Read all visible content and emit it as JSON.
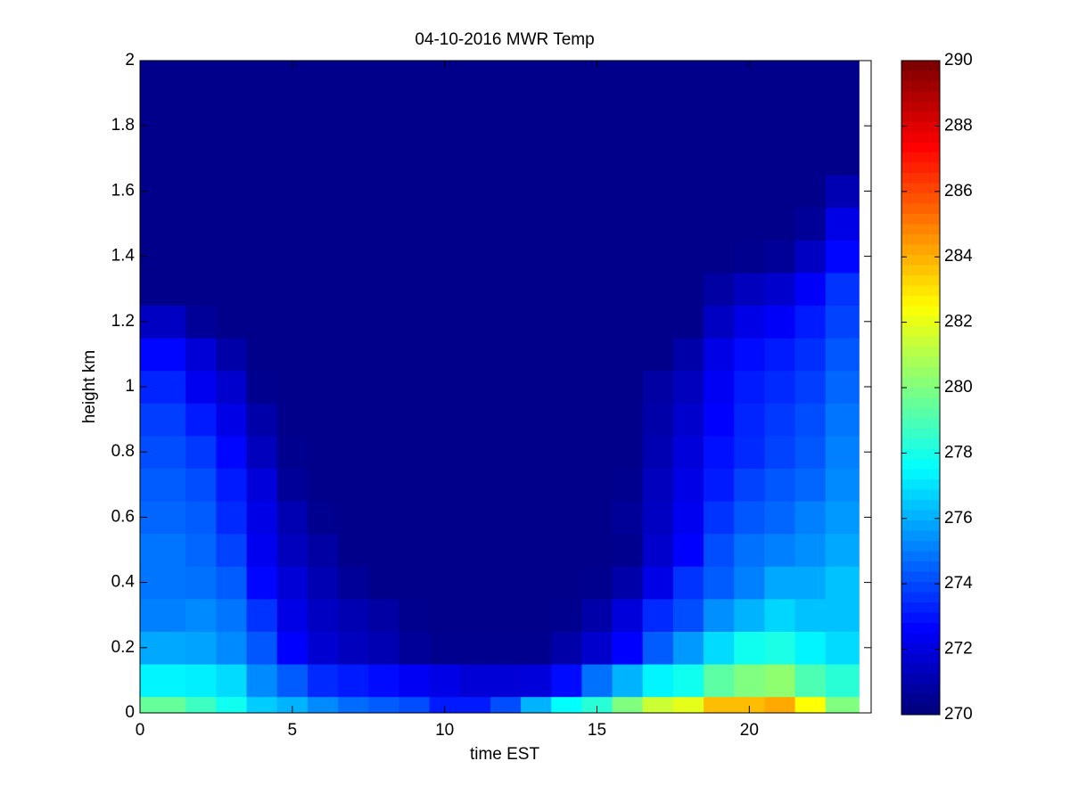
{
  "chart_data": {
    "type": "heatmap",
    "title": "04-10-2016 MWR Temp",
    "xlabel": "time EST",
    "ylabel": "height km",
    "colormap": "jet",
    "clim": [
      270,
      290
    ],
    "cticks": [
      270,
      272,
      274,
      276,
      278,
      280,
      282,
      284,
      286,
      288,
      290
    ],
    "xlim": [
      0,
      24
    ],
    "xticks": [
      0,
      5,
      10,
      15,
      20
    ],
    "ylim": [
      0,
      2
    ],
    "yticks": [
      0,
      0.2,
      0.4,
      0.6,
      0.8,
      1,
      1.2,
      1.4,
      1.6,
      1.8,
      2
    ],
    "x_edges": [
      0,
      1.5,
      2.5,
      3.5,
      4.5,
      5.5,
      6.5,
      7.5,
      8.5,
      9.5,
      10.5,
      11.5,
      12.5,
      13.5,
      14.5,
      15.5,
      16.5,
      17.5,
      18.5,
      19.5,
      20.5,
      21.5,
      22.5,
      23.6
    ],
    "y_edges": [
      0,
      0.05,
      0.15,
      0.25,
      0.35,
      0.45,
      0.55,
      0.65,
      0.75,
      0.85,
      0.95,
      1.05,
      1.15,
      1.25,
      1.35,
      1.45,
      1.55,
      1.65,
      1.75,
      1.85,
      1.95,
      2
    ],
    "z": [
      [
        279.5,
        278.7,
        277.8,
        276.5,
        276,
        275.2,
        274.6,
        274.3,
        274,
        273,
        273,
        274,
        276,
        277.5,
        278.3,
        280,
        281.5,
        282,
        283.8,
        283.8,
        284.2,
        282.5,
        280
      ],
      [
        277.3,
        277.2,
        276.8,
        275.2,
        274.3,
        273.3,
        273,
        272.7,
        272.3,
        272,
        271.7,
        271.7,
        271.8,
        272.7,
        274.7,
        276,
        277.3,
        277.8,
        279.3,
        280,
        280.3,
        279,
        278.3
      ],
      [
        275.8,
        275.7,
        275.2,
        274.2,
        272.5,
        271.6,
        271.2,
        271,
        270.5,
        270.3,
        270.3,
        270.3,
        270.3,
        270.8,
        271.5,
        272.5,
        274.3,
        275.5,
        276.8,
        277.8,
        278,
        277.3,
        276.8
      ],
      [
        275,
        275.2,
        274.8,
        273.5,
        272,
        271.3,
        271,
        270.7,
        270.3,
        270.2,
        270.2,
        270.2,
        270.2,
        270.3,
        270.8,
        271.8,
        273.3,
        274,
        275.3,
        276,
        276.7,
        276.3,
        276.3
      ],
      [
        274.8,
        274.7,
        274.3,
        272.6,
        271.7,
        271,
        270.5,
        270.2,
        270.2,
        270.2,
        270.2,
        270.2,
        270.2,
        270.2,
        270.3,
        270.8,
        272,
        273.5,
        274.3,
        275,
        275.8,
        275.8,
        276.3
      ],
      [
        274.8,
        274.5,
        273.8,
        272.2,
        271.2,
        270.7,
        270.2,
        270.2,
        270.2,
        270.2,
        270.2,
        270.2,
        270.2,
        270.2,
        270.2,
        270.3,
        271.5,
        272.5,
        274,
        274.7,
        275,
        275.3,
        275.8
      ],
      [
        274.5,
        274.3,
        273.3,
        272,
        271,
        270.3,
        270.2,
        270.2,
        270.2,
        270.2,
        270.2,
        270.2,
        270.2,
        270.2,
        270.2,
        270.5,
        271.3,
        272.2,
        273.5,
        274.2,
        274.5,
        275,
        275.5
      ],
      [
        274.3,
        274,
        273,
        271.8,
        270.5,
        270.2,
        270.2,
        270.2,
        270.2,
        270.2,
        270.2,
        270.2,
        270.2,
        270.2,
        270.2,
        270.3,
        271.2,
        272,
        273,
        273.8,
        274.2,
        274.5,
        275.2
      ],
      [
        274,
        273.6,
        272.6,
        271.2,
        270.3,
        270.2,
        270.2,
        270.2,
        270.2,
        270.2,
        270.2,
        270.2,
        270.2,
        270.2,
        270.2,
        270.2,
        271,
        271.8,
        272.8,
        273.3,
        273.8,
        274.2,
        275
      ],
      [
        273.7,
        273,
        272,
        270.8,
        270.2,
        270.2,
        270.2,
        270.2,
        270.2,
        270.2,
        270.2,
        270.2,
        270.2,
        270.2,
        270.2,
        270.2,
        270.8,
        271.5,
        272.5,
        273.2,
        273.6,
        274,
        274.8
      ],
      [
        273.2,
        272.2,
        271.5,
        270.3,
        270.2,
        270.2,
        270.2,
        270.2,
        270.2,
        270.2,
        270.2,
        270.2,
        270.2,
        270.2,
        270.2,
        270.2,
        270.7,
        271.2,
        272.3,
        273,
        273.3,
        273.7,
        274.5
      ],
      [
        272.6,
        271.7,
        270.8,
        270.2,
        270.2,
        270.2,
        270.2,
        270.2,
        270.2,
        270.2,
        270.2,
        270.2,
        270.2,
        270.2,
        270.2,
        270.2,
        270.2,
        270.8,
        272,
        272.7,
        273,
        273.4,
        274.2
      ],
      [
        271.3,
        270.5,
        270.2,
        270.2,
        270.2,
        270.2,
        270.2,
        270.2,
        270.2,
        270.2,
        270.2,
        270.2,
        270.2,
        270.2,
        270.2,
        270.2,
        270.2,
        270.2,
        271.3,
        272,
        272.4,
        273,
        273.8
      ],
      [
        270.2,
        270.2,
        270.2,
        270.2,
        270.2,
        270.2,
        270.2,
        270.2,
        270.2,
        270.2,
        270.2,
        270.2,
        270.2,
        270.2,
        270.2,
        270.2,
        270.2,
        270.2,
        270.7,
        271.2,
        271.5,
        272.4,
        273.5
      ],
      [
        270.2,
        270.2,
        270.2,
        270.2,
        270.2,
        270.2,
        270.2,
        270.2,
        270.2,
        270.2,
        270.2,
        270.2,
        270.2,
        270.2,
        270.2,
        270.2,
        270.2,
        270.2,
        270.2,
        270.3,
        270.5,
        271.3,
        272.6
      ],
      [
        270.2,
        270.2,
        270.2,
        270.2,
        270.2,
        270.2,
        270.2,
        270.2,
        270.2,
        270.2,
        270.2,
        270.2,
        270.2,
        270.2,
        270.2,
        270.2,
        270.2,
        270.2,
        270.2,
        270.2,
        270.2,
        270.5,
        272
      ],
      [
        270.2,
        270.2,
        270.2,
        270.2,
        270.2,
        270.2,
        270.2,
        270.2,
        270.2,
        270.2,
        270.2,
        270.2,
        270.2,
        270.2,
        270.2,
        270.2,
        270.2,
        270.2,
        270.2,
        270.2,
        270.2,
        270.2,
        271
      ],
      [
        270.2,
        270.2,
        270.2,
        270.2,
        270.2,
        270.2,
        270.2,
        270.2,
        270.2,
        270.2,
        270.2,
        270.2,
        270.2,
        270.2,
        270.2,
        270.2,
        270.2,
        270.2,
        270.2,
        270.2,
        270.2,
        270.2,
        270.2
      ],
      [
        270.2,
        270.2,
        270.2,
        270.2,
        270.2,
        270.2,
        270.2,
        270.2,
        270.2,
        270.2,
        270.2,
        270.2,
        270.2,
        270.2,
        270.2,
        270.2,
        270.2,
        270.2,
        270.2,
        270.2,
        270.2,
        270.2,
        270.2
      ],
      [
        270.2,
        270.2,
        270.2,
        270.2,
        270.2,
        270.2,
        270.2,
        270.2,
        270.2,
        270.2,
        270.2,
        270.2,
        270.2,
        270.2,
        270.2,
        270.2,
        270.2,
        270.2,
        270.2,
        270.2,
        270.2,
        270.2,
        270.2
      ],
      [
        270.2,
        270.2,
        270.2,
        270.2,
        270.2,
        270.2,
        270.2,
        270.2,
        270.2,
        270.2,
        270.2,
        270.2,
        270.2,
        270.2,
        270.2,
        270.2,
        270.2,
        270.2,
        270.2,
        270.2,
        270.2,
        270.2,
        270.2
      ]
    ]
  }
}
